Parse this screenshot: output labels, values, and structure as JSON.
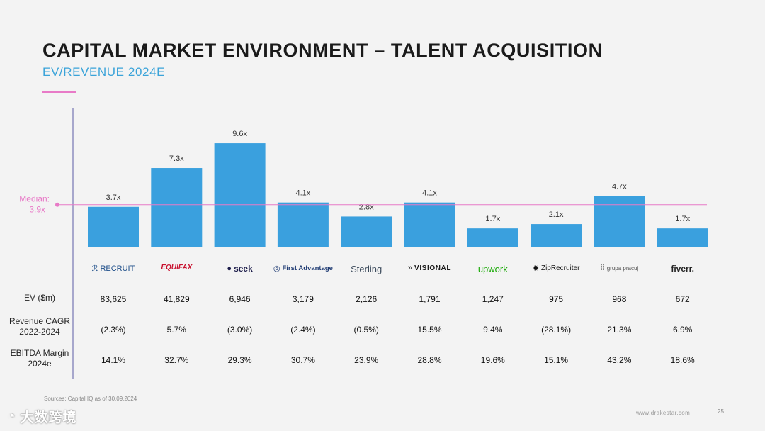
{
  "header": {
    "title": "CAPITAL MARKET ENVIRONMENT – TALENT ACQUISITION",
    "subtitle": "EV/REVENUE 2024E"
  },
  "chart_data": {
    "type": "bar",
    "title": "EV/REVENUE 2024E",
    "categories": [
      "RECRUIT",
      "EQUIFAX",
      "seek",
      "First Advantage",
      "Sterling",
      "VISIONAL",
      "upwork",
      "ZipRecruiter",
      "grupa pracuj",
      "fiverr."
    ],
    "values": [
      3.7,
      7.3,
      9.6,
      4.1,
      2.8,
      4.1,
      1.7,
      2.1,
      4.7,
      1.7
    ],
    "data_labels": [
      "3.7x",
      "7.3x",
      "9.6x",
      "4.1x",
      "2.8x",
      "4.1x",
      "1.7x",
      "2.1x",
      "4.7x",
      "1.7x"
    ],
    "median": 3.9,
    "median_label_line1": "Median:",
    "median_label_line2": "3.9x",
    "ylim": [
      0,
      10
    ],
    "bar_color": "#3aa0de",
    "median_color": "#e87ac7",
    "axis_color": "#8e8ec0"
  },
  "logos": [
    {
      "text": "RECRUIT",
      "color": "#1f4f8a",
      "icon": "recruit-r-icon",
      "glyph": "ℛ"
    },
    {
      "text": "EQUIFAX",
      "color": "#c8102e",
      "icon": "",
      "glyph": ""
    },
    {
      "text": "seek",
      "color": "#1c1c4a",
      "icon": "seek-circle-icon",
      "glyph": "●"
    },
    {
      "text": "First Advantage",
      "color": "#1f3b73",
      "icon": "first-advantage-icon",
      "glyph": "◎"
    },
    {
      "text": "Sterling",
      "color": "#3c4b5c",
      "icon": "",
      "glyph": ""
    },
    {
      "text": "VISIONAL",
      "color": "#1a1a1a",
      "icon": "visional-chevron-icon",
      "glyph": "»"
    },
    {
      "text": "upwork",
      "color": "#14a800",
      "icon": "",
      "glyph": ""
    },
    {
      "text": "ZipRecruiter",
      "color": "#111111",
      "icon": "ziprecruiter-icon",
      "glyph": "✹"
    },
    {
      "text": "grupa pracuj",
      "color": "#555555",
      "icon": "grupa-pracuj-icon",
      "glyph": "⁞⁞"
    },
    {
      "text": "fiverr.",
      "color": "#222222",
      "icon": "",
      "glyph": ""
    }
  ],
  "table": {
    "rows": [
      {
        "label": "EV ($m)",
        "values": [
          "83,625",
          "41,829",
          "6,946",
          "3,179",
          "2,126",
          "1,791",
          "1,247",
          "975",
          "968",
          "672"
        ]
      },
      {
        "label": "Revenue CAGR 2022-2024",
        "values": [
          "(2.3%)",
          "5.7%",
          "(3.0%)",
          "(2.4%)",
          "(0.5%)",
          "15.5%",
          "9.4%",
          "(28.1%)",
          "21.3%",
          "6.9%"
        ]
      },
      {
        "label": "EBITDA Margin 2024e",
        "values": [
          "14.1%",
          "32.7%",
          "29.3%",
          "30.7%",
          "23.9%",
          "28.8%",
          "19.6%",
          "15.1%",
          "43.2%",
          "18.6%"
        ]
      }
    ]
  },
  "footer": {
    "source": "Sources: Capital IQ as of 30.09.2024",
    "website": "www.drakestar.com",
    "page_number": "25",
    "watermark": "大数跨境"
  }
}
